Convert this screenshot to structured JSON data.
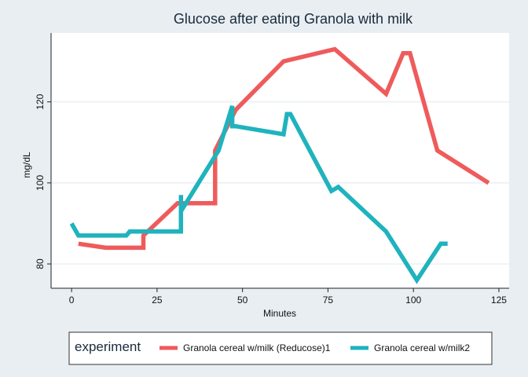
{
  "chart_data": {
    "type": "line",
    "title": "Glucose after eating Granola with milk",
    "xlabel": "Minutes",
    "ylabel": "mg/dL",
    "xlim": [
      -6,
      128
    ],
    "ylim": [
      74,
      137
    ],
    "xticks": [
      0,
      25,
      50,
      75,
      100,
      125
    ],
    "yticks": [
      80,
      100,
      120
    ],
    "grid": true,
    "legend": {
      "title": "experiment",
      "placement": "bottom"
    },
    "series": [
      {
        "name": "Granola cereal w/milk (Reducose)1",
        "color": "#ef5b5b",
        "x": [
          2,
          10,
          20,
          21,
          21,
          31,
          42,
          42,
          48,
          62,
          77,
          92,
          97,
          99,
          107,
          122
        ],
        "y": [
          85,
          84,
          84,
          84,
          87,
          95,
          95,
          108,
          118,
          130,
          133,
          122,
          132,
          132,
          108,
          100
        ]
      },
      {
        "name": "Granola cereal w/milk2",
        "color": "#1fb3bd",
        "x": [
          0,
          2,
          16,
          17,
          32,
          32,
          32,
          43,
          47,
          47,
          48,
          62,
          63,
          64,
          76,
          78,
          92,
          101,
          108,
          110
        ],
        "y": [
          90,
          87,
          87,
          88,
          88,
          97,
          93,
          108,
          119,
          114,
          114,
          112,
          117,
          117,
          98,
          99,
          88,
          76,
          85,
          85
        ]
      }
    ]
  }
}
